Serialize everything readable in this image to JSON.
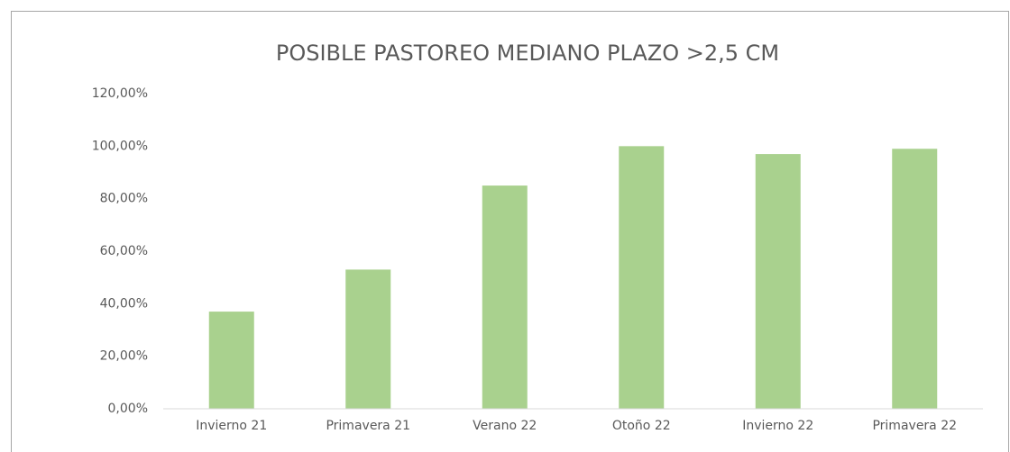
{
  "chart_data": {
    "type": "bar",
    "title": "POSIBLE PASTOREO MEDIANO PLAZO >2,5 CM",
    "categories": [
      "Invierno 21",
      "Primavera 21",
      "Verano 22",
      "Otoño 22",
      "Invierno 22",
      "Primavera 22"
    ],
    "values": [
      37,
      53,
      85,
      100,
      97,
      99
    ],
    "color": "#a9d18e",
    "ylim": [
      0,
      120
    ],
    "yticks": [
      {
        "value": 0,
        "label": "0,00%"
      },
      {
        "value": 20,
        "label": "20,00%"
      },
      {
        "value": 40,
        "label": "40,00%"
      },
      {
        "value": 60,
        "label": "60,00%"
      },
      {
        "value": 80,
        "label": "80,00%"
      },
      {
        "value": 100,
        "label": "100,00%"
      },
      {
        "value": 120,
        "label": "120,00%"
      }
    ],
    "grid": false
  }
}
